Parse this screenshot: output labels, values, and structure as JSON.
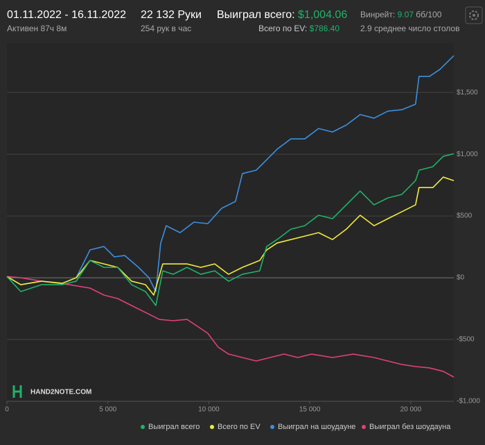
{
  "header": {
    "date_range": "01.11.2022 - 16.11.2022",
    "active": "Активен 87ч 8м",
    "hands": "22 132 Руки",
    "hands_per_hour": "254 рук в час",
    "won_label": "Выиграл всего:",
    "won_value": "$1,004.06",
    "ev_label": "Всего по EV:",
    "ev_value": "$786.40",
    "winrate_label": "Винрейт:",
    "winrate_value": "9.07",
    "winrate_unit": "бб/100",
    "tables": "2.9 среднее число столов"
  },
  "watermark": "HAND2NOTE.COM",
  "chart_data": {
    "type": "line",
    "grid": true,
    "xlim": [
      0,
      22132
    ],
    "ylim": [
      -1000,
      1900
    ],
    "xticks": [
      0,
      {
        "value": 5000,
        "label": "5 000"
      },
      {
        "value": 10000,
        "label": "10 000"
      },
      {
        "value": 15000,
        "label": "15 000"
      },
      {
        "value": 20000,
        "label": "20 000"
      }
    ],
    "yticks": [
      {
        "value": 1500,
        "label": "$1,500"
      },
      {
        "value": 1000,
        "label": "$1,000"
      },
      {
        "value": 500,
        "label": "$500"
      },
      {
        "value": 0,
        "label": "$0"
      },
      {
        "value": -500,
        "label": "-$500"
      },
      {
        "value": -1000,
        "label": "-$1,000"
      }
    ],
    "series": [
      {
        "name": "Выиграл на шоудауне",
        "color": "#3d8fe0",
        "x": [
          0,
          686,
          1715,
          2744,
          3430,
          4116,
          4802,
          5317,
          5831,
          6517,
          7032,
          7375,
          7615,
          7889,
          8575,
          9261,
          9947,
          10633,
          11319,
          11662,
          12348,
          12691,
          13377,
          14063,
          14749,
          15435,
          16121,
          16807,
          17493,
          18179,
          18865,
          19551,
          20237,
          20409,
          20923,
          21438,
          22132
        ],
        "values": [
          10,
          -56,
          -28,
          -45,
          0,
          225,
          253,
          169,
          180,
          84,
          0,
          -112,
          281,
          421,
          365,
          450,
          438,
          562,
          618,
          843,
          871,
          927,
          1040,
          1124,
          1124,
          1208,
          1180,
          1236,
          1321,
          1292,
          1349,
          1360,
          1405,
          1630,
          1630,
          1686,
          1798
        ]
      },
      {
        "name": "Выиграл без шоудауна",
        "color": "#e0407a",
        "x": [
          0,
          686,
          1715,
          3087,
          4116,
          4802,
          5488,
          6174,
          6860,
          7546,
          8232,
          8918,
          9433,
          9947,
          10462,
          10976,
          11662,
          12348,
          13034,
          13720,
          14406,
          15092,
          16121,
          17150,
          18179,
          18865,
          19551,
          20237,
          20923,
          21609,
          22132
        ],
        "values": [
          10,
          0,
          -28,
          -56,
          -84,
          -140,
          -169,
          -225,
          -281,
          -337,
          -348,
          -337,
          -393,
          -450,
          -562,
          -618,
          -646,
          -674,
          -646,
          -618,
          -646,
          -618,
          -646,
          -618,
          -646,
          -674,
          -702,
          -719,
          -730,
          -758,
          -804
        ]
      },
      {
        "name": "Всего по EV",
        "color": "#f0ec3a",
        "x": [
          0,
          686,
          1715,
          2744,
          3430,
          4116,
          4802,
          5488,
          6174,
          6860,
          7272,
          7718,
          8232,
          8918,
          9604,
          10290,
          10976,
          11662,
          12519,
          12862,
          13377,
          14063,
          14749,
          15435,
          16121,
          16807,
          17493,
          18179,
          18865,
          19551,
          20237,
          20409,
          21095,
          21609,
          22132
        ],
        "values": [
          10,
          -56,
          -28,
          -45,
          0,
          140,
          112,
          84,
          -28,
          -56,
          -140,
          112,
          112,
          112,
          84,
          112,
          28,
          84,
          140,
          225,
          281,
          309,
          337,
          365,
          309,
          393,
          506,
          421,
          478,
          534,
          590,
          730,
          730,
          815,
          786
        ]
      },
      {
        "name": "Выиграл всего",
        "color": "#1fb36b",
        "x": [
          0,
          686,
          1715,
          2744,
          3430,
          4116,
          4802,
          5488,
          6174,
          6860,
          7375,
          7718,
          8232,
          8918,
          9604,
          10290,
          10976,
          11662,
          12519,
          12862,
          13377,
          14063,
          14749,
          15435,
          16121,
          16807,
          17493,
          18179,
          18865,
          19551,
          20237,
          20409,
          21095,
          21609,
          22132
        ],
        "values": [
          10,
          -112,
          -56,
          -56,
          -28,
          140,
          84,
          84,
          -56,
          -112,
          -225,
          56,
          28,
          84,
          28,
          56,
          -28,
          28,
          56,
          253,
          309,
          393,
          421,
          506,
          478,
          590,
          702,
          590,
          646,
          674,
          787,
          871,
          899,
          983,
          1004
        ]
      }
    ]
  }
}
